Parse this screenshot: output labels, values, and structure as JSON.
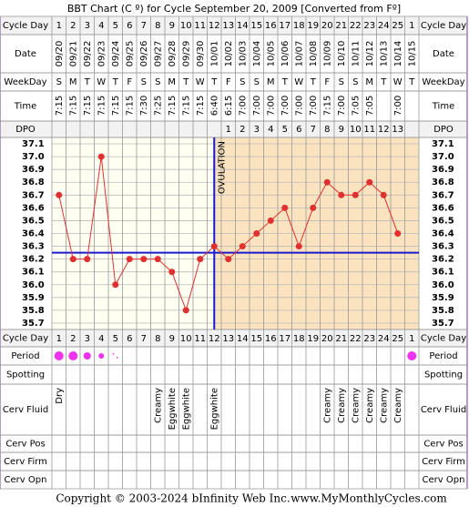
{
  "chart_data": {
    "type": "bbt",
    "title": "BBT Chart (C º) for Cycle September 20, 2009  [Converted from Fº]",
    "row_labels": {
      "cycle_day": "Cycle Day",
      "date": "Date",
      "weekday": "WeekDay",
      "time": "Time",
      "dpo": "DPO",
      "period": "Period",
      "spotting": "Spotting",
      "cerv_fluid": "Cerv Fluid",
      "cerv_pos": "Cerv Pos",
      "cerv_firm": "Cerv Firm",
      "cerv_opn": "Cerv Opn"
    },
    "categories": [
      "1",
      "2",
      "3",
      "4",
      "5",
      "6",
      "7",
      "8",
      "9",
      "10",
      "11",
      "12",
      "13",
      "14",
      "15",
      "16",
      "17",
      "18",
      "19",
      "20",
      "21",
      "22",
      "23",
      "24",
      "25",
      "1"
    ],
    "dates": [
      "09/20",
      "09/21",
      "09/22",
      "09/23",
      "09/24",
      "09/25",
      "09/26",
      "09/27",
      "09/28",
      "09/29",
      "09/30",
      "10/01",
      "10/02",
      "10/03",
      "10/04",
      "10/05",
      "10/06",
      "10/07",
      "10/08",
      "10/09",
      "10/10",
      "10/11",
      "10/12",
      "10/13",
      "10/14",
      "10/15"
    ],
    "weekdays": [
      "S",
      "M",
      "T",
      "W",
      "T",
      "F",
      "S",
      "S",
      "M",
      "T",
      "W",
      "T",
      "F",
      "S",
      "S",
      "M",
      "T",
      "W",
      "T",
      "F",
      "S",
      "S",
      "M",
      "T",
      "W",
      "T"
    ],
    "times": [
      "7:15",
      "7:15",
      "7:15",
      "7:15",
      "7:15",
      "7:15",
      "7:30",
      "7:25",
      "7:15",
      "7:15",
      "7:15",
      "6:40",
      "6:15",
      "7:00",
      "7:00",
      "7:00",
      "7:00",
      "7:00",
      "7:00",
      "7:15",
      "7:00",
      "7:05",
      "7:05",
      null,
      "7:00",
      null
    ],
    "dpo": [
      null,
      null,
      null,
      null,
      null,
      null,
      null,
      null,
      null,
      null,
      null,
      null,
      1,
      2,
      3,
      4,
      5,
      6,
      7,
      8,
      9,
      10,
      11,
      12,
      13,
      null
    ],
    "values": [
      36.7,
      36.2,
      36.2,
      37.0,
      36.0,
      36.2,
      36.2,
      36.2,
      36.1,
      35.8,
      36.2,
      36.3,
      36.2,
      36.3,
      36.4,
      36.5,
      36.6,
      36.3,
      36.6,
      36.8,
      36.7,
      36.7,
      36.8,
      36.7,
      36.4,
      null
    ],
    "color": "#e03030",
    "ylim": [
      35.65,
      37.15
    ],
    "yticks": [
      {
        "value": 37.1,
        "label": "37.1"
      },
      {
        "value": 37.0,
        "label": "37.0"
      },
      36.9,
      36.8,
      36.7,
      36.6,
      36.5,
      36.4,
      36.3,
      36.2,
      36.1,
      {
        "value": 36.0,
        "label": "36.0"
      },
      35.9,
      35.8,
      35.7
    ],
    "grid": true,
    "coverline": 36.25,
    "coverline_color": "#1a1ad0",
    "ovulation_day": 12,
    "ovulation_label": "OVULATION",
    "period": [
      4,
      4,
      3,
      2,
      1,
      null,
      null,
      null,
      null,
      null,
      null,
      null,
      null,
      null,
      null,
      null,
      null,
      null,
      null,
      null,
      null,
      null,
      null,
      null,
      null,
      4
    ],
    "period_color": "#ee33ee",
    "cerv_fluid": [
      "Dry",
      null,
      null,
      null,
      null,
      null,
      null,
      "Creamy",
      "Eggwhite",
      "Eggwhite",
      null,
      "Eggwhite",
      null,
      null,
      null,
      null,
      null,
      null,
      null,
      "Creamy",
      "Creamy",
      "Creamy",
      "Creamy",
      "Creamy",
      "Creamy",
      null
    ],
    "copyright": "Copyright © 2003-2024 bInfinity Web Inc.",
    "site": "www.MyMonthlyCycles.com"
  }
}
